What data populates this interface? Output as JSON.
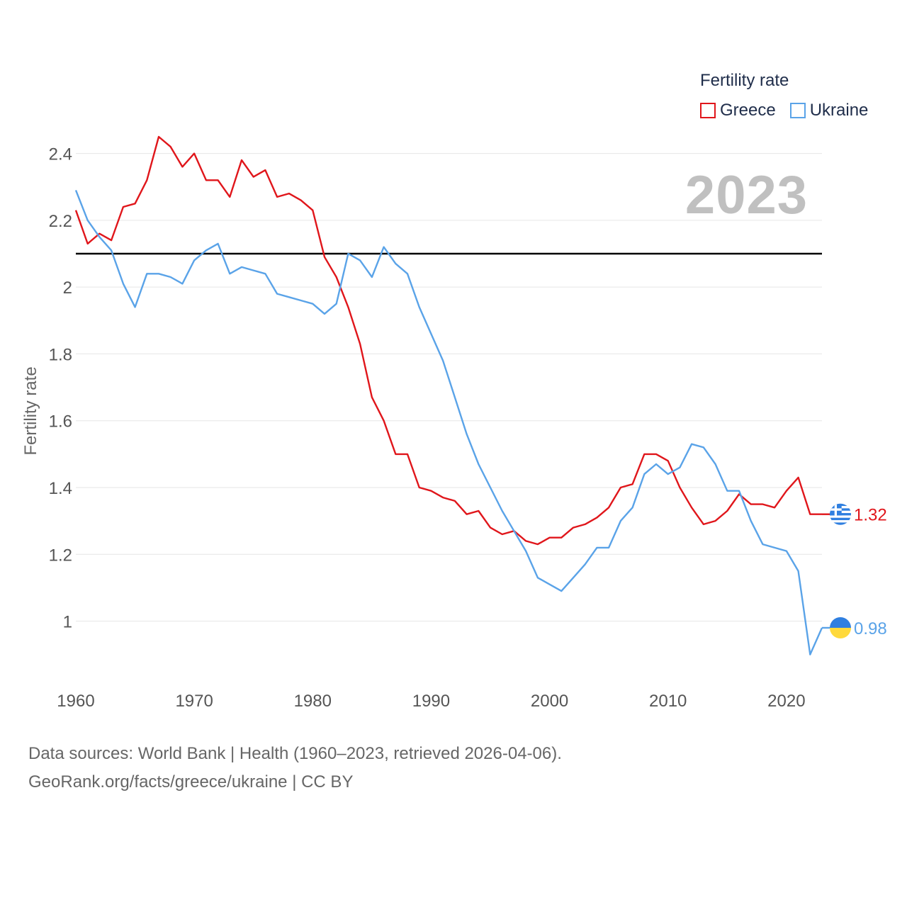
{
  "legend": {
    "title": "Fertility rate",
    "items": [
      {
        "label": "Greece",
        "color": "#e0161b"
      },
      {
        "label": "Ukraine",
        "color": "#5aa3e8"
      }
    ]
  },
  "current_year": "2023",
  "source": {
    "line1": "Data sources: World Bank | Health (1960–2023, retrieved 2026-04-06).",
    "line2": "GeoRank.org/facts/greece/ukraine | CC BY"
  },
  "chart_data": {
    "type": "line",
    "title": "",
    "xlabel": "",
    "ylabel": "Fertility rate",
    "xlim": [
      1960,
      2023
    ],
    "ylim": [
      0.84,
      2.52
    ],
    "x_ticks": [
      1960,
      1970,
      1980,
      1990,
      2000,
      2010,
      2020
    ],
    "y_ticks": [
      1,
      1.2,
      1.4,
      1.6,
      1.8,
      2,
      2.2,
      2.4
    ],
    "y_tick_labels": [
      "1",
      "1.2",
      "1.4",
      "1.6",
      "1.8",
      "2",
      "2.2",
      "2.4"
    ],
    "reference_line": {
      "y": 2.1,
      "color": "#000000"
    },
    "x": [
      1960,
      1961,
      1962,
      1963,
      1964,
      1965,
      1966,
      1967,
      1968,
      1969,
      1970,
      1971,
      1972,
      1973,
      1974,
      1975,
      1976,
      1977,
      1978,
      1979,
      1980,
      1981,
      1982,
      1983,
      1984,
      1985,
      1986,
      1987,
      1988,
      1989,
      1990,
      1991,
      1992,
      1993,
      1994,
      1995,
      1996,
      1997,
      1998,
      1999,
      2000,
      2001,
      2002,
      2003,
      2004,
      2005,
      2006,
      2007,
      2008,
      2009,
      2010,
      2011,
      2012,
      2013,
      2014,
      2015,
      2016,
      2017,
      2018,
      2019,
      2020,
      2021,
      2022,
      2023
    ],
    "series": [
      {
        "name": "Greece",
        "color": "#e0161b",
        "end_label": "1.32",
        "values": [
          2.23,
          2.13,
          2.16,
          2.14,
          2.24,
          2.25,
          2.32,
          2.45,
          2.42,
          2.36,
          2.4,
          2.32,
          2.32,
          2.27,
          2.38,
          2.33,
          2.35,
          2.27,
          2.28,
          2.26,
          2.23,
          2.09,
          2.03,
          1.94,
          1.83,
          1.67,
          1.6,
          1.5,
          1.5,
          1.4,
          1.39,
          1.37,
          1.36,
          1.32,
          1.33,
          1.28,
          1.26,
          1.27,
          1.24,
          1.23,
          1.25,
          1.25,
          1.28,
          1.29,
          1.31,
          1.34,
          1.4,
          1.41,
          1.5,
          1.5,
          1.48,
          1.4,
          1.34,
          1.29,
          1.3,
          1.33,
          1.38,
          1.35,
          1.35,
          1.34,
          1.39,
          1.43,
          1.32,
          1.32
        ]
      },
      {
        "name": "Ukraine",
        "color": "#5aa3e8",
        "end_label": "0.98",
        "values": [
          2.29,
          2.2,
          2.15,
          2.11,
          2.01,
          1.94,
          2.04,
          2.04,
          2.03,
          2.01,
          2.08,
          2.11,
          2.13,
          2.04,
          2.06,
          2.05,
          2.04,
          1.98,
          1.97,
          1.96,
          1.95,
          1.92,
          1.95,
          2.1,
          2.08,
          2.03,
          2.12,
          2.07,
          2.04,
          1.94,
          1.86,
          1.78,
          1.67,
          1.56,
          1.47,
          1.4,
          1.33,
          1.27,
          1.21,
          1.13,
          1.11,
          1.09,
          1.13,
          1.17,
          1.22,
          1.22,
          1.3,
          1.34,
          1.44,
          1.47,
          1.44,
          1.46,
          1.53,
          1.52,
          1.47,
          1.39,
          1.39,
          1.3,
          1.23,
          1.22,
          1.21,
          1.15,
          0.9,
          0.98
        ]
      }
    ]
  }
}
